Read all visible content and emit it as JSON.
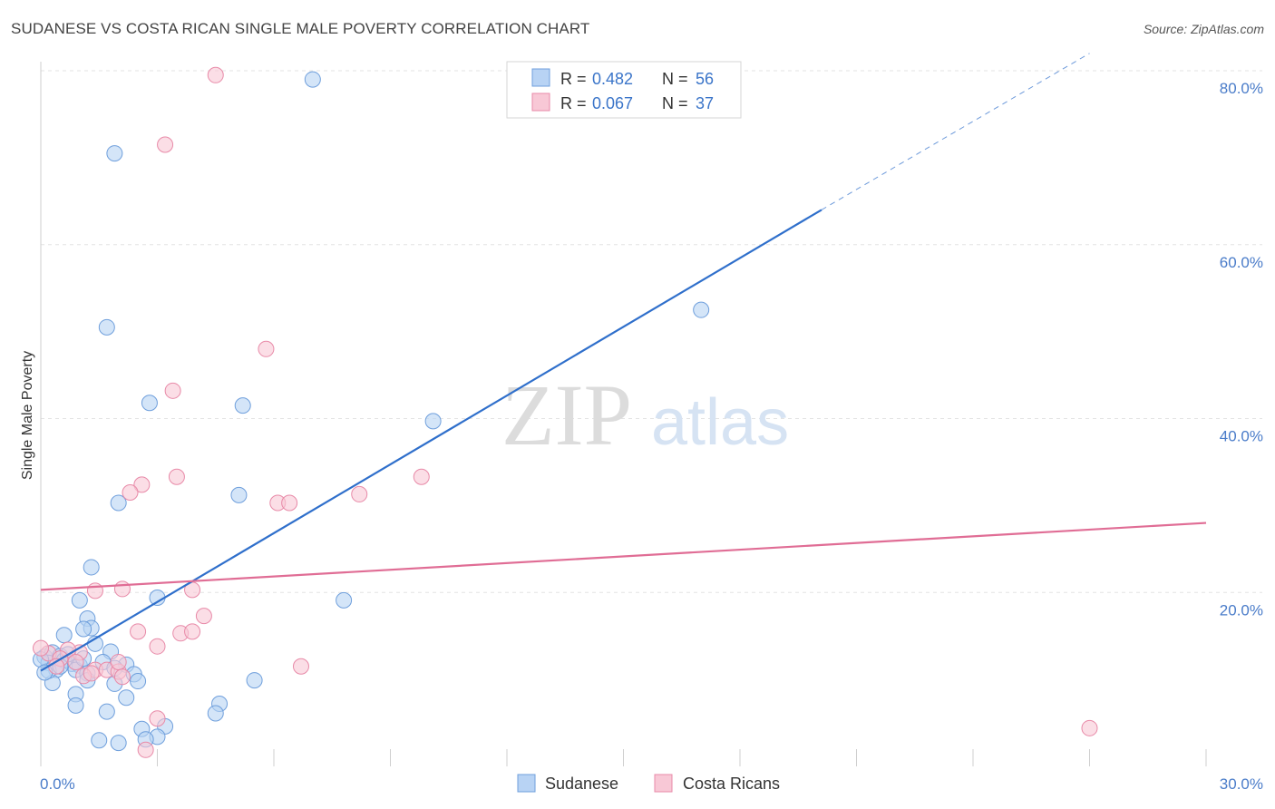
{
  "title": "SUDANESE VS COSTA RICAN SINGLE MALE POVERTY CORRELATION CHART",
  "source": "Source: ZipAtlas.com",
  "watermark": {
    "zip": "ZIP",
    "atlas": "atlas"
  },
  "colors": {
    "sudanese_fill": "#b8d3f4",
    "sudanese_stroke": "#6f9fdc",
    "sudanese_line": "#2f6fcb",
    "costa_fill": "#f8c8d6",
    "costa_stroke": "#e88aa8",
    "costa_line": "#e06d95",
    "tick_text": "#4a7cc9",
    "grid": "#e3e3e3"
  },
  "chart_data": {
    "type": "scatter",
    "title": "SUDANESE VS COSTA RICAN SINGLE MALE POVERTY CORRELATION CHART",
    "xlabel": "",
    "ylabel": "Single Male Poverty",
    "xlim": [
      0,
      30
    ],
    "ylim": [
      0,
      80
    ],
    "x_tick_labels": [
      "0.0%",
      "30.0%"
    ],
    "y_ticks": [
      20,
      40,
      60,
      80
    ],
    "y_tick_labels": [
      "20.0%",
      "40.0%",
      "60.0%",
      "80.0%"
    ],
    "grid": true,
    "legend_top": [
      {
        "series": "Sudanese",
        "r_label": "R =",
        "r_value": "0.482",
        "n_label": "N =",
        "n_value": "56"
      },
      {
        "series": "Costa Ricans",
        "r_label": "R =",
        "r_value": "0.067",
        "n_label": "N =",
        "n_value": "37"
      }
    ],
    "legend_bottom": [
      "Sudanese",
      "Costa Ricans"
    ],
    "series": [
      {
        "name": "Sudanese",
        "trend": {
          "x0": 0,
          "y0": 11,
          "x1": 20.1,
          "y1": 64,
          "dashed_to_x": 27,
          "dashed_to_y": 82
        },
        "points": [
          [
            7,
            79
          ],
          [
            1.9,
            70.5
          ],
          [
            1.7,
            50.5
          ],
          [
            17,
            52.5
          ],
          [
            2.8,
            41.8
          ],
          [
            5.2,
            41.5
          ],
          [
            10.1,
            39.7
          ],
          [
            5.1,
            31.2
          ],
          [
            2.0,
            30.3
          ],
          [
            1.3,
            22.9
          ],
          [
            3.0,
            19.4
          ],
          [
            7.8,
            19.1
          ],
          [
            1.0,
            19.1
          ],
          [
            1.2,
            17.0
          ],
          [
            1.3,
            15.9
          ],
          [
            0.6,
            15.1
          ],
          [
            1.1,
            15.8
          ],
          [
            1.4,
            14.1
          ],
          [
            1.8,
            13.2
          ],
          [
            0.1,
            12.6
          ],
          [
            0.3,
            13.1
          ],
          [
            0.5,
            12.7
          ],
          [
            0.2,
            11.9
          ],
          [
            0.8,
            11.8
          ],
          [
            1.0,
            11.6
          ],
          [
            0.4,
            11.1
          ],
          [
            0.9,
            11.1
          ],
          [
            2.2,
            11.7
          ],
          [
            1.2,
            10.7
          ],
          [
            2.4,
            10.6
          ],
          [
            1.2,
            9.9
          ],
          [
            2.5,
            9.8
          ],
          [
            1.9,
            9.5
          ],
          [
            5.5,
            9.9
          ],
          [
            0.3,
            9.6
          ],
          [
            0.9,
            8.3
          ],
          [
            2.2,
            7.9
          ],
          [
            0.9,
            7.0
          ],
          [
            4.6,
            7.2
          ],
          [
            1.7,
            6.3
          ],
          [
            4.5,
            6.1
          ],
          [
            3.2,
            4.6
          ],
          [
            2.6,
            4.3
          ],
          [
            3.0,
            3.4
          ],
          [
            2.7,
            3.1
          ],
          [
            1.5,
            3.0
          ],
          [
            2.0,
            2.7
          ],
          [
            0.2,
            11.0
          ],
          [
            0.6,
            12.2
          ],
          [
            0.0,
            12.3
          ],
          [
            1.6,
            12.0
          ],
          [
            0.7,
            12.9
          ],
          [
            0.5,
            11.5
          ],
          [
            1.1,
            12.4
          ],
          [
            1.9,
            11.3
          ],
          [
            0.1,
            10.8
          ]
        ]
      },
      {
        "name": "Costa Ricans",
        "trend": {
          "x0": 0,
          "y0": 20.3,
          "x1": 30,
          "y1": 28
        },
        "points": [
          [
            4.5,
            79.5
          ],
          [
            3.2,
            71.5
          ],
          [
            5.8,
            48.0
          ],
          [
            3.4,
            43.2
          ],
          [
            3.5,
            33.3
          ],
          [
            9.8,
            33.3
          ],
          [
            2.6,
            32.4
          ],
          [
            2.3,
            31.5
          ],
          [
            8.2,
            31.3
          ],
          [
            6.1,
            30.3
          ],
          [
            6.4,
            30.3
          ],
          [
            2.1,
            20.4
          ],
          [
            1.4,
            20.2
          ],
          [
            3.9,
            20.3
          ],
          [
            4.2,
            17.3
          ],
          [
            2.5,
            15.5
          ],
          [
            3.6,
            15.3
          ],
          [
            3.9,
            15.5
          ],
          [
            3.0,
            13.8
          ],
          [
            1.0,
            13.1
          ],
          [
            0.7,
            13.4
          ],
          [
            0.2,
            13.0
          ],
          [
            0.0,
            13.6
          ],
          [
            0.5,
            12.4
          ],
          [
            1.4,
            11.1
          ],
          [
            1.7,
            11.1
          ],
          [
            2.0,
            10.9
          ],
          [
            2.0,
            12.0
          ],
          [
            1.1,
            10.4
          ],
          [
            6.7,
            11.5
          ],
          [
            0.4,
            11.5
          ],
          [
            2.1,
            10.3
          ],
          [
            0.9,
            12.0
          ],
          [
            3.0,
            5.5
          ],
          [
            2.7,
            1.9
          ],
          [
            27.0,
            4.4
          ],
          [
            1.3,
            10.7
          ]
        ]
      }
    ]
  }
}
